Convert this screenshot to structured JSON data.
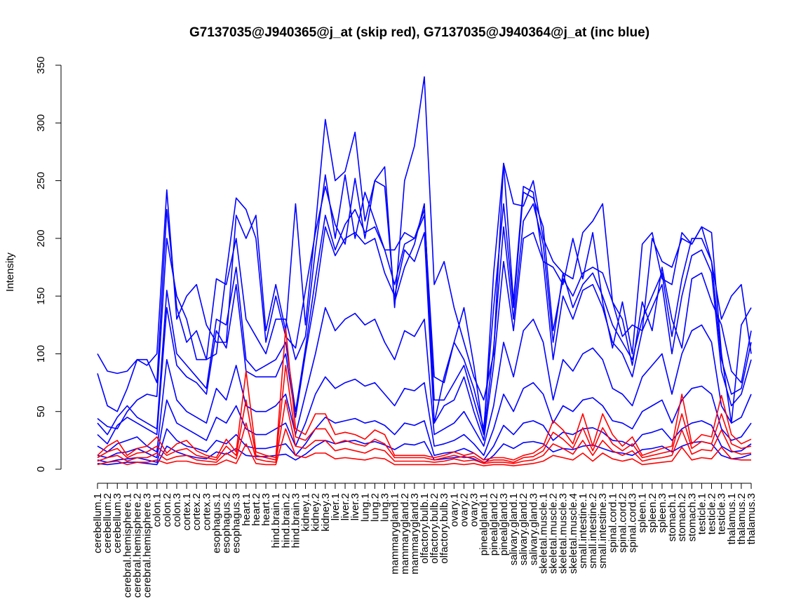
{
  "chart_data": {
    "type": "line",
    "title": "G7137035@J940365@j_at (skip red), G7137035@J940364@j_at (inc blue)",
    "xlabel": "",
    "ylabel": "Intensity",
    "ylim": [
      0,
      350
    ],
    "yticks": [
      0,
      50,
      100,
      150,
      200,
      250,
      300,
      350
    ],
    "grid": false,
    "categories": [
      "cerebellum.1",
      "cerebellum.2",
      "cerebellum.3",
      "cerebral.hemisphere.1",
      "cerebral.hemisphere.2",
      "cerebral.hemisphere.3",
      "colon.1",
      "colon.2",
      "colon.3",
      "cortex.1",
      "cortex.2",
      "cortex.3",
      "esophagus.1",
      "esophagus.2",
      "esophagus.3",
      "heart.1",
      "heart.2",
      "heart.3",
      "hind.brain.1",
      "hind.brain.2",
      "hind.brain.3",
      "kidney.1",
      "kidney.2",
      "kidney.3",
      "liver.1",
      "liver.2",
      "liver.3",
      "lung.1",
      "lung.2",
      "lung.3",
      "mammarygland.1",
      "mammarygland.2",
      "mammarygland.3",
      "olfactory.bulb.1",
      "olfactory.bulb.2",
      "olfactory.bulb.3",
      "ovary.1",
      "ovary.2",
      "ovary.3",
      "pinealgland.1",
      "pinealgland.2",
      "pinealgland.3",
      "salivary.gland.1",
      "salivary.gland.2",
      "salivary.gland.3",
      "skeletal.muscle.1",
      "skeletal.muscle.2",
      "skeletal.muscle.3",
      "skeletal.muscle.4",
      "small.intestine.1",
      "small.intestine.2",
      "small.intestine.3",
      "spinal.cord.1",
      "spinal.cord.2",
      "spinal.cord.3",
      "spleen.1",
      "spleen.2",
      "spleen.3",
      "stomach.1",
      "stomach.2",
      "stomach.3",
      "testicle.1",
      "testicle.2",
      "testicle.3",
      "thalamus.1",
      "thalamus.2",
      "thalamus.3"
    ],
    "series": [
      {
        "color": "#0000ff",
        "values": [
          100,
          85,
          83,
          85,
          95,
          90,
          100,
          242,
          130,
          150,
          160,
          125,
          110,
          110,
          220,
          200,
          220,
          120,
          160,
          120,
          230,
          125,
          210,
          303,
          250,
          258,
          292,
          215,
          250,
          262,
          140,
          250,
          280,
          340,
          160,
          180,
          140,
          110,
          80,
          60,
          100,
          265,
          230,
          228,
          250,
          200,
          180,
          170,
          165,
          205,
          215,
          230,
          145,
          115,
          125,
          120,
          200,
          180,
          175,
          200,
          195,
          210,
          205,
          100,
          40,
          125,
          140
        ]
      },
      {
        "color": "#0000ff",
        "values": [
          83,
          55,
          50,
          70,
          95,
          95,
          75,
          225,
          140,
          110,
          120,
          95,
          100,
          170,
          235,
          225,
          200,
          110,
          150,
          115,
          105,
          155,
          205,
          245,
          212,
          195,
          252,
          200,
          250,
          245,
          145,
          175,
          195,
          230,
          40,
          80,
          110,
          140,
          90,
          30,
          170,
          265,
          145,
          245,
          240,
          180,
          175,
          160,
          200,
          165,
          205,
          145,
          105,
          145,
          100,
          195,
          205,
          165,
          160,
          205,
          195,
          210,
          180,
          130,
          150,
          160,
          100
        ]
      },
      {
        "color": "#0000ff",
        "values": [
          44,
          37,
          35,
          50,
          60,
          65,
          63,
          200,
          150,
          130,
          95,
          95,
          165,
          160,
          200,
          130,
          115,
          100,
          130,
          130,
          95,
          115,
          190,
          255,
          200,
          255,
          200,
          240,
          215,
          190,
          190,
          205,
          200,
          220,
          80,
          75,
          110,
          95,
          70,
          35,
          140,
          230,
          140,
          240,
          235,
          210,
          120,
          165,
          150,
          170,
          175,
          170,
          145,
          130,
          90,
          145,
          120,
          175,
          130,
          105,
          165,
          170,
          145,
          125,
          85,
          75,
          120
        ]
      },
      {
        "color": "#0000ff",
        "values": [
          40,
          30,
          45,
          55,
          45,
          40,
          35,
          155,
          100,
          90,
          80,
          70,
          130,
          125,
          175,
          95,
          85,
          90,
          95,
          110,
          50,
          105,
          165,
          220,
          190,
          212,
          225,
          205,
          210,
          190,
          160,
          195,
          200,
          225,
          60,
          60,
          75,
          90,
          60,
          30,
          105,
          210,
          130,
          215,
          230,
          195,
          110,
          170,
          140,
          160,
          170,
          150,
          125,
          110,
          95,
          130,
          150,
          170,
          115,
          165,
          200,
          200,
          180,
          95,
          65,
          70,
          110
        ]
      },
      {
        "color": "#0000ff",
        "values": [
          30,
          22,
          38,
          45,
          40,
          35,
          30,
          140,
          90,
          80,
          75,
          65,
          120,
          105,
          160,
          85,
          80,
          80,
          80,
          100,
          45,
          100,
          150,
          210,
          185,
          200,
          205,
          195,
          200,
          170,
          150,
          190,
          180,
          205,
          40,
          55,
          60,
          80,
          50,
          25,
          90,
          180,
          120,
          200,
          205,
          180,
          95,
          150,
          130,
          155,
          160,
          140,
          110,
          100,
          80,
          120,
          140,
          160,
          100,
          150,
          185,
          190,
          170,
          85,
          55,
          65,
          95
        ]
      },
      {
        "color": "#0000ff",
        "values": [
          20,
          15,
          22,
          25,
          28,
          20,
          15,
          95,
          60,
          50,
          45,
          40,
          70,
          60,
          90,
          55,
          50,
          50,
          55,
          65,
          30,
          65,
          100,
          140,
          120,
          130,
          135,
          125,
          130,
          110,
          95,
          120,
          115,
          130,
          30,
          35,
          40,
          50,
          35,
          20,
          55,
          110,
          80,
          120,
          130,
          110,
          60,
          95,
          85,
          100,
          105,
          95,
          70,
          65,
          55,
          80,
          90,
          100,
          65,
          100,
          120,
          125,
          110,
          55,
          40,
          45,
          65
        ]
      },
      {
        "color": "#0000ff",
        "values": [
          12,
          10,
          14,
          15,
          18,
          14,
          10,
          60,
          40,
          35,
          30,
          25,
          45,
          40,
          55,
          35,
          30,
          30,
          35,
          40,
          20,
          40,
          65,
          80,
          70,
          75,
          78,
          72,
          75,
          65,
          55,
          70,
          68,
          75,
          20,
          22,
          25,
          30,
          22,
          12,
          35,
          65,
          50,
          70,
          75,
          65,
          40,
          55,
          50,
          60,
          62,
          55,
          42,
          40,
          35,
          50,
          55,
          60,
          40,
          60,
          70,
          72,
          65,
          35,
          25,
          28,
          40
        ]
      },
      {
        "color": "#0000ff",
        "values": [
          8,
          6,
          8,
          9,
          10,
          8,
          6,
          35,
          25,
          20,
          18,
          15,
          25,
          22,
          30,
          20,
          18,
          18,
          20,
          22,
          12,
          22,
          35,
          45,
          40,
          42,
          44,
          40,
          42,
          38,
          30,
          40,
          38,
          42,
          12,
          14,
          15,
          18,
          14,
          8,
          20,
          38,
          30,
          40,
          42,
          38,
          25,
          32,
          30,
          35,
          36,
          32,
          25,
          24,
          20,
          30,
          32,
          35,
          25,
          35,
          40,
          42,
          38,
          20,
          15,
          16,
          22
        ]
      },
      {
        "color": "#0000ff",
        "values": [
          5,
          4,
          5,
          6,
          6,
          5,
          4,
          20,
          15,
          12,
          10,
          9,
          15,
          13,
          18,
          12,
          11,
          11,
          12,
          13,
          8,
          13,
          20,
          25,
          22,
          24,
          25,
          22,
          24,
          21,
          17,
          22,
          21,
          24,
          8,
          9,
          10,
          11,
          9,
          5,
          12,
          22,
          18,
          23,
          24,
          22,
          15,
          18,
          17,
          20,
          21,
          18,
          15,
          14,
          12,
          17,
          18,
          20,
          15,
          20,
          23,
          24,
          22,
          12,
          9,
          10,
          13
        ]
      },
      {
        "color": "#ff0000",
        "values": [
          12,
          20,
          25,
          12,
          18,
          20,
          28,
          14,
          22,
          25,
          16,
          12,
          10,
          26,
          15,
          85,
          15,
          12,
          10,
          122,
          35,
          30,
          48,
          48,
          30,
          32,
          30,
          26,
          34,
          30,
          12,
          12,
          12,
          12,
          10,
          12,
          15,
          12,
          14,
          8,
          10,
          10,
          8,
          12,
          14,
          20,
          42,
          34,
          22,
          48,
          20,
          48,
          30,
          20,
          28,
          12,
          15,
          18,
          20,
          65,
          22,
          30,
          28,
          64,
          30,
          22,
          26
        ]
      },
      {
        "color": "#ff0000",
        "values": [
          10,
          15,
          18,
          10,
          14,
          15,
          20,
          12,
          16,
          18,
          12,
          10,
          8,
          20,
          12,
          60,
          12,
          10,
          8,
          90,
          28,
          25,
          35,
          35,
          22,
          25,
          22,
          20,
          26,
          22,
          10,
          10,
          10,
          10,
          8,
          10,
          12,
          10,
          11,
          6,
          8,
          8,
          6,
          10,
          11,
          16,
          32,
          26,
          18,
          36,
          16,
          36,
          22,
          16,
          22,
          10,
          12,
          14,
          16,
          48,
          18,
          24,
          22,
          48,
          22,
          18,
          20
        ]
      },
      {
        "color": "#ff0000",
        "values": [
          7,
          10,
          12,
          7,
          10,
          10,
          14,
          8,
          11,
          12,
          8,
          7,
          6,
          14,
          9,
          40,
          9,
          7,
          6,
          60,
          20,
          18,
          25,
          25,
          16,
          18,
          16,
          14,
          18,
          16,
          7,
          7,
          7,
          7,
          6,
          7,
          9,
          7,
          8,
          5,
          6,
          6,
          5,
          7,
          8,
          12,
          22,
          18,
          13,
          25,
          12,
          25,
          16,
          12,
          16,
          7,
          9,
          10,
          12,
          34,
          13,
          17,
          16,
          34,
          16,
          13,
          14
        ]
      },
      {
        "color": "#ff0000",
        "values": [
          4,
          6,
          7,
          4,
          6,
          6,
          8,
          5,
          7,
          7,
          5,
          4,
          4,
          8,
          5,
          22,
          5,
          4,
          4,
          35,
          12,
          10,
          14,
          14,
          9,
          10,
          9,
          8,
          10,
          9,
          4,
          4,
          4,
          4,
          4,
          4,
          5,
          4,
          5,
          3,
          4,
          4,
          3,
          4,
          5,
          7,
          12,
          10,
          8,
          14,
          7,
          14,
          9,
          7,
          9,
          4,
          5,
          6,
          7,
          19,
          8,
          10,
          9,
          19,
          9,
          8,
          8
        ]
      }
    ]
  }
}
